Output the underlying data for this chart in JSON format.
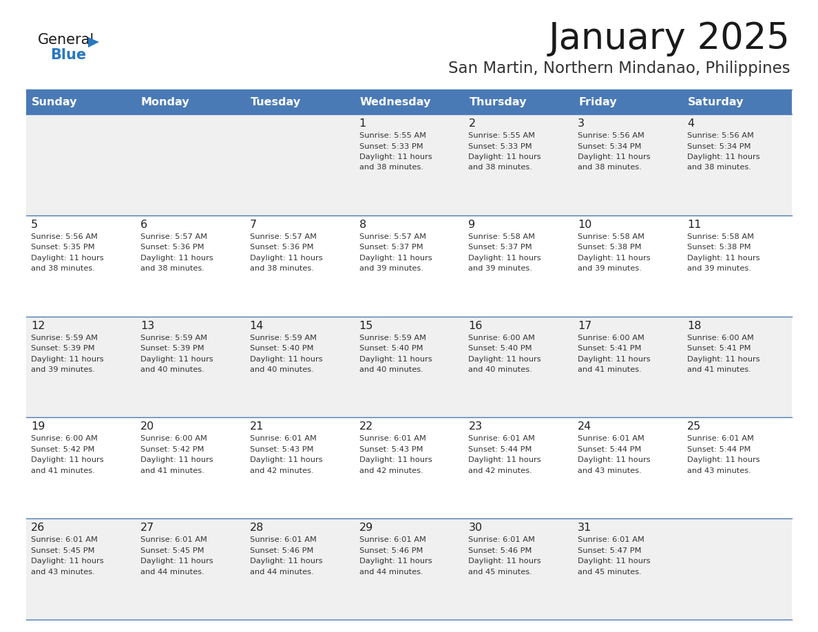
{
  "title": "January 2025",
  "subtitle": "San Martin, Northern Mindanao, Philippines",
  "header_bg_color": "#4a7ab5",
  "header_text_color": "#ffffff",
  "row_bg_even": "#f0f0f0",
  "row_bg_odd": "#ffffff",
  "day_names": [
    "Sunday",
    "Monday",
    "Tuesday",
    "Wednesday",
    "Thursday",
    "Friday",
    "Saturday"
  ],
  "grid_line_color": "#4a7ab5",
  "day_num_color": "#222222",
  "cell_text_color": "#333333",
  "title_color": "#1a1a1a",
  "subtitle_color": "#333333",
  "logo_general_color": "#1a1a1a",
  "logo_blue_color": "#2878c0",
  "calendar_data": [
    [
      null,
      null,
      null,
      {
        "day": 1,
        "sunrise": "5:55 AM",
        "sunset": "5:33 PM",
        "daylight_hours": 11,
        "daylight_minutes": 38
      },
      {
        "day": 2,
        "sunrise": "5:55 AM",
        "sunset": "5:33 PM",
        "daylight_hours": 11,
        "daylight_minutes": 38
      },
      {
        "day": 3,
        "sunrise": "5:56 AM",
        "sunset": "5:34 PM",
        "daylight_hours": 11,
        "daylight_minutes": 38
      },
      {
        "day": 4,
        "sunrise": "5:56 AM",
        "sunset": "5:34 PM",
        "daylight_hours": 11,
        "daylight_minutes": 38
      }
    ],
    [
      {
        "day": 5,
        "sunrise": "5:56 AM",
        "sunset": "5:35 PM",
        "daylight_hours": 11,
        "daylight_minutes": 38
      },
      {
        "day": 6,
        "sunrise": "5:57 AM",
        "sunset": "5:36 PM",
        "daylight_hours": 11,
        "daylight_minutes": 38
      },
      {
        "day": 7,
        "sunrise": "5:57 AM",
        "sunset": "5:36 PM",
        "daylight_hours": 11,
        "daylight_minutes": 38
      },
      {
        "day": 8,
        "sunrise": "5:57 AM",
        "sunset": "5:37 PM",
        "daylight_hours": 11,
        "daylight_minutes": 39
      },
      {
        "day": 9,
        "sunrise": "5:58 AM",
        "sunset": "5:37 PM",
        "daylight_hours": 11,
        "daylight_minutes": 39
      },
      {
        "day": 10,
        "sunrise": "5:58 AM",
        "sunset": "5:38 PM",
        "daylight_hours": 11,
        "daylight_minutes": 39
      },
      {
        "day": 11,
        "sunrise": "5:58 AM",
        "sunset": "5:38 PM",
        "daylight_hours": 11,
        "daylight_minutes": 39
      }
    ],
    [
      {
        "day": 12,
        "sunrise": "5:59 AM",
        "sunset": "5:39 PM",
        "daylight_hours": 11,
        "daylight_minutes": 39
      },
      {
        "day": 13,
        "sunrise": "5:59 AM",
        "sunset": "5:39 PM",
        "daylight_hours": 11,
        "daylight_minutes": 40
      },
      {
        "day": 14,
        "sunrise": "5:59 AM",
        "sunset": "5:40 PM",
        "daylight_hours": 11,
        "daylight_minutes": 40
      },
      {
        "day": 15,
        "sunrise": "5:59 AM",
        "sunset": "5:40 PM",
        "daylight_hours": 11,
        "daylight_minutes": 40
      },
      {
        "day": 16,
        "sunrise": "6:00 AM",
        "sunset": "5:40 PM",
        "daylight_hours": 11,
        "daylight_minutes": 40
      },
      {
        "day": 17,
        "sunrise": "6:00 AM",
        "sunset": "5:41 PM",
        "daylight_hours": 11,
        "daylight_minutes": 41
      },
      {
        "day": 18,
        "sunrise": "6:00 AM",
        "sunset": "5:41 PM",
        "daylight_hours": 11,
        "daylight_minutes": 41
      }
    ],
    [
      {
        "day": 19,
        "sunrise": "6:00 AM",
        "sunset": "5:42 PM",
        "daylight_hours": 11,
        "daylight_minutes": 41
      },
      {
        "day": 20,
        "sunrise": "6:00 AM",
        "sunset": "5:42 PM",
        "daylight_hours": 11,
        "daylight_minutes": 41
      },
      {
        "day": 21,
        "sunrise": "6:01 AM",
        "sunset": "5:43 PM",
        "daylight_hours": 11,
        "daylight_minutes": 42
      },
      {
        "day": 22,
        "sunrise": "6:01 AM",
        "sunset": "5:43 PM",
        "daylight_hours": 11,
        "daylight_minutes": 42
      },
      {
        "day": 23,
        "sunrise": "6:01 AM",
        "sunset": "5:44 PM",
        "daylight_hours": 11,
        "daylight_minutes": 42
      },
      {
        "day": 24,
        "sunrise": "6:01 AM",
        "sunset": "5:44 PM",
        "daylight_hours": 11,
        "daylight_minutes": 43
      },
      {
        "day": 25,
        "sunrise": "6:01 AM",
        "sunset": "5:44 PM",
        "daylight_hours": 11,
        "daylight_minutes": 43
      }
    ],
    [
      {
        "day": 26,
        "sunrise": "6:01 AM",
        "sunset": "5:45 PM",
        "daylight_hours": 11,
        "daylight_minutes": 43
      },
      {
        "day": 27,
        "sunrise": "6:01 AM",
        "sunset": "5:45 PM",
        "daylight_hours": 11,
        "daylight_minutes": 44
      },
      {
        "day": 28,
        "sunrise": "6:01 AM",
        "sunset": "5:46 PM",
        "daylight_hours": 11,
        "daylight_minutes": 44
      },
      {
        "day": 29,
        "sunrise": "6:01 AM",
        "sunset": "5:46 PM",
        "daylight_hours": 11,
        "daylight_minutes": 44
      },
      {
        "day": 30,
        "sunrise": "6:01 AM",
        "sunset": "5:46 PM",
        "daylight_hours": 11,
        "daylight_minutes": 45
      },
      {
        "day": 31,
        "sunrise": "6:01 AM",
        "sunset": "5:47 PM",
        "daylight_hours": 11,
        "daylight_minutes": 45
      },
      null
    ]
  ]
}
